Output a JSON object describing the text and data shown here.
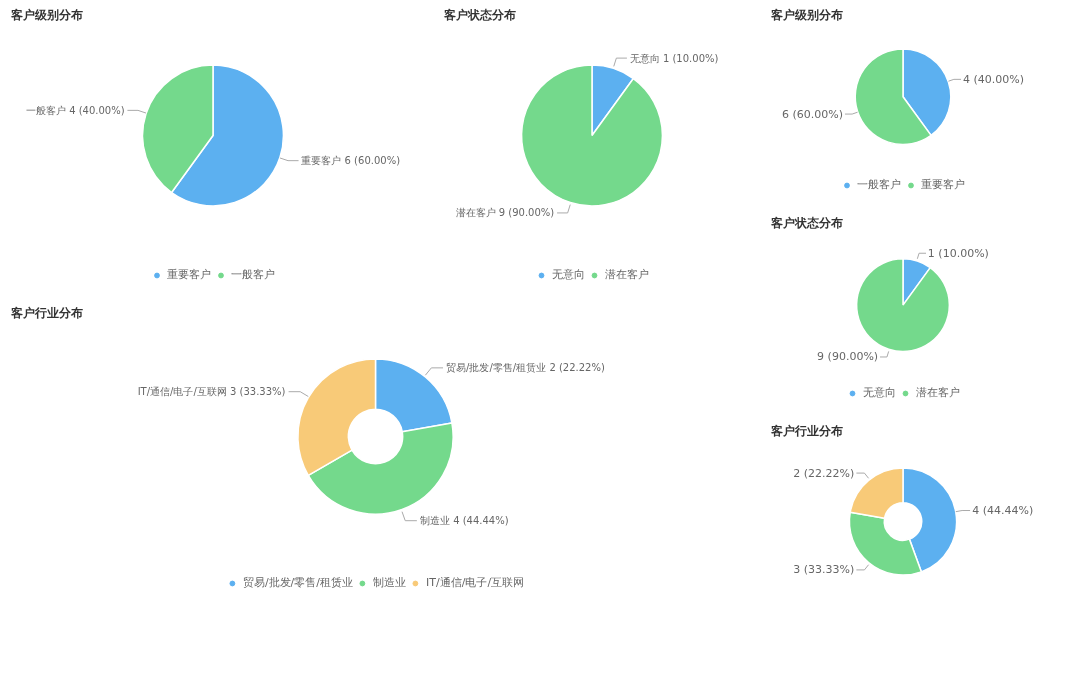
{
  "chart_data": [
    {
      "type": "pie",
      "title": "客户级别分布",
      "categories": [
        "重要客户",
        "一般客户"
      ],
      "values": [
        6,
        4
      ],
      "colors": [
        "#5cb0f0",
        "#74d98c"
      ],
      "value_labels": [
        "重要客户 6 (60.00%)",
        "一般客户 4 (40.00%)"
      ],
      "legend": "bottom"
    },
    {
      "type": "pie",
      "title": "客户状态分布",
      "categories": [
        "无意向",
        "潜在客户"
      ],
      "values": [
        1,
        9
      ],
      "colors": [
        "#5cb0f0",
        "#74d98c"
      ],
      "value_labels": [
        "无意向 1 (10.00%)",
        "潜在客户 9 (90.00%)"
      ],
      "legend": "bottom"
    },
    {
      "type": "donut",
      "title": "客户行业分布",
      "categories": [
        "贸易/批发/零售/租赁业",
        "制造业",
        "IT/通信/电子/互联网"
      ],
      "values": [
        2,
        4,
        3
      ],
      "colors": [
        "#5cb0f0",
        "#74d98c",
        "#f8ca78"
      ],
      "value_labels": [
        "贸易/批发/零售/租赁业 2 (22.22%)",
        "制造业 4 (44.44%)",
        "IT/通信/电子/互联网 3 (33.33%)"
      ],
      "legend": "bottom"
    },
    {
      "type": "pie",
      "title": "客户级别分布",
      "categories": [
        "一般客户",
        "重要客户"
      ],
      "values": [
        4,
        6
      ],
      "colors": [
        "#5cb0f0",
        "#74d98c"
      ],
      "value_labels": [
        "4 (40.00%)",
        "6 (60.00%)"
      ],
      "legend": "bottom"
    },
    {
      "type": "pie",
      "title": "客户状态分布",
      "categories": [
        "无意向",
        "潜在客户"
      ],
      "values": [
        1,
        9
      ],
      "colors": [
        "#5cb0f0",
        "#74d98c"
      ],
      "value_labels": [
        "1 (10.00%)",
        "9 (90.00%)"
      ],
      "legend": "bottom"
    },
    {
      "type": "donut",
      "title": "客户行业分布",
      "categories": [
        null,
        null,
        null
      ],
      "values": [
        4,
        3,
        2
      ],
      "colors": [
        "#5cb0f0",
        "#74d98c",
        "#f8ca78"
      ],
      "value_labels": [
        "4 (44.44%)",
        "3 (33.33%)",
        "2 (22.22%)"
      ]
    }
  ]
}
